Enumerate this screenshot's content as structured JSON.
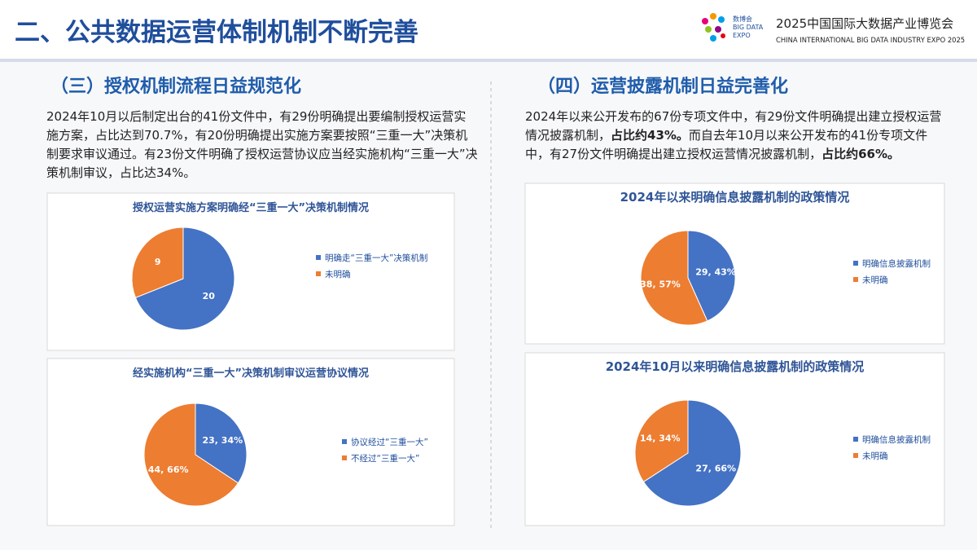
{
  "header": {
    "title": "二、公共数据运营体制机制不断完善",
    "logo_small": [
      "数博会",
      "BIG DATA",
      "EXPO"
    ],
    "expo_name": "2025中国国际大数据产业博览会",
    "expo_name_en": "CHINA INTERNATIONAL BIG DATA INDUSTRY EXPO 2025"
  },
  "left": {
    "heading": "（三）授权机制流程日益规范化",
    "paragraph": [
      "2024年10月以后制定出台的41份文件中，有29份明确提出要编制授权运营实施方案，占比达到70.7%，有20份明确提出实施方案要按照“三重一大”决策机制要求审议通过。有23份文件明确了授权运营协议应当经实施机构“三重一大”决策机制审议，占比达34%。"
    ]
  },
  "right": {
    "heading": "（四）运营披露机制日益完善化",
    "paragraph": [
      "2024年以来公开发布的67份专项文件中，有29份文件明确提出建立授权运营情况披露机制，",
      "占比约43%。",
      "而自去年10月以来公开发布的41份专项文件中，有27份文件明确提出建立授权运营情况披露机制，",
      "占比约66%。"
    ]
  },
  "chart_data": [
    {
      "type": "pie",
      "title": "授权运营实施方案明确经“三重一大”决策机制情况",
      "categories": [
        "明确走“三重一大”决策机制",
        "未明确"
      ],
      "values": [
        20,
        9
      ],
      "colors": [
        "#4472c4",
        "#ed7d31"
      ]
    },
    {
      "type": "pie",
      "title": "经实施机构“三重一大”决策机制审议运营协议情况",
      "categories": [
        "协议经过“三重一大”",
        "不经过“三重一大”"
      ],
      "values": [
        23,
        44
      ],
      "value_labels": [
        "23, 34%",
        "44, 66%"
      ],
      "colors": [
        "#4472c4",
        "#ed7d31"
      ]
    },
    {
      "type": "pie",
      "title": "2024年以来明确信息披露机制的政策情况",
      "categories": [
        "明确信息披露机制",
        "未明确"
      ],
      "values": [
        29,
        38
      ],
      "value_labels": [
        "29, 43%",
        "38, 57%"
      ],
      "colors": [
        "#4472c4",
        "#ed7d31"
      ]
    },
    {
      "type": "pie",
      "title": "2024年10月以来明确信息披露机制的政策情况",
      "categories": [
        "明确信息披露机制",
        "未明确"
      ],
      "values": [
        27,
        14
      ],
      "value_labels": [
        "27, 66%",
        "14, 34%"
      ],
      "colors": [
        "#4472c4",
        "#ed7d31"
      ]
    }
  ]
}
